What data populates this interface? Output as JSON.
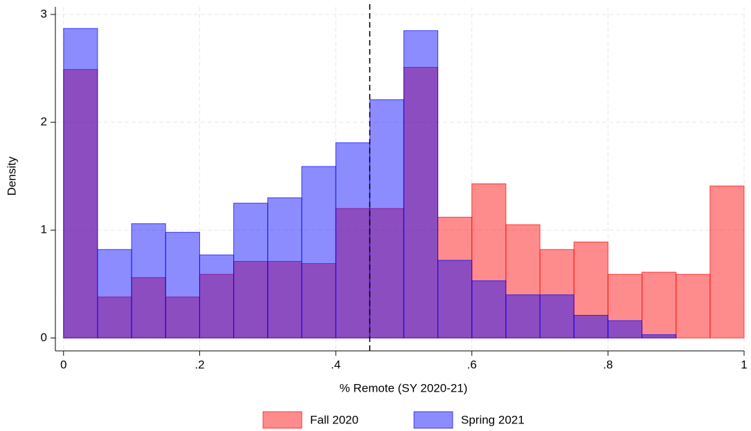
{
  "chart_data": {
    "type": "histogram",
    "x_label": "% Remote (SY 2020-21)",
    "y_label": "Density",
    "bins": [
      0,
      0.05,
      0.1,
      0.15,
      0.2,
      0.25,
      0.3,
      0.35,
      0.4,
      0.45,
      0.5,
      0.55,
      0.6,
      0.65,
      0.7,
      0.75,
      0.8,
      0.85,
      0.9,
      0.95,
      1.0
    ],
    "series": [
      {
        "name": "Fall 2020",
        "color": "#ff0000",
        "values": [
          2.49,
          0.38,
          0.56,
          0.38,
          0.59,
          0.71,
          0.71,
          0.69,
          1.2,
          1.2,
          2.51,
          1.12,
          1.43,
          1.05,
          0.82,
          0.89,
          0.59,
          0.61,
          0.59,
          1.41
        ]
      },
      {
        "name": "Spring 2021",
        "color": "#0000ff",
        "values": [
          2.87,
          0.82,
          1.06,
          0.98,
          0.77,
          1.25,
          1.3,
          1.59,
          1.81,
          2.21,
          2.85,
          0.72,
          0.53,
          0.4,
          0.4,
          0.21,
          0.16,
          0.03,
          0,
          0
        ]
      }
    ],
    "reference_line": 0.45,
    "xlim": [
      -0.012,
      1.0
    ],
    "ylim": [
      -0.12,
      3.07
    ],
    "xticks": [
      0,
      {
        "value": 0.2,
        "label": ".2"
      },
      {
        "value": 0.4,
        "label": ".4"
      },
      {
        "value": 0.6,
        "label": ".6"
      },
      {
        "value": 0.8,
        "label": ".8"
      },
      1
    ],
    "yticks": [
      0,
      1,
      2,
      3
    ],
    "grid": true,
    "legend": "bottom"
  }
}
